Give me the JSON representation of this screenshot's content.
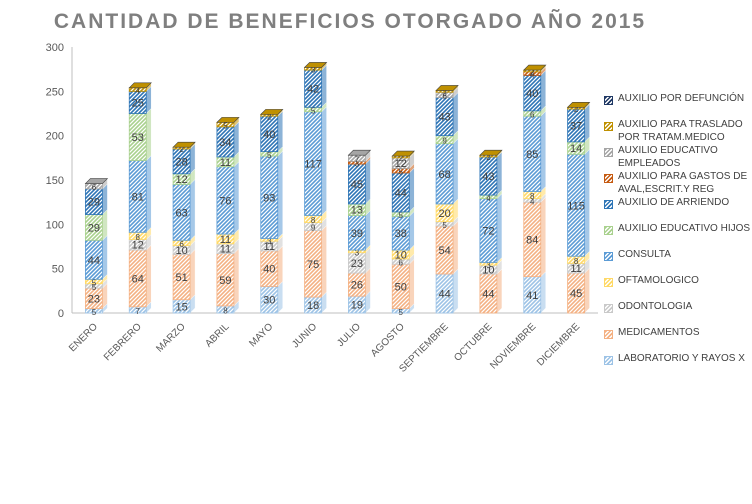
{
  "chart_data": {
    "type": "bar",
    "stacked": true,
    "title": "CANTIDAD DE BENEFICIOS OTORGADO AÑO 2015",
    "xlabel": "",
    "ylabel": "",
    "ylim": [
      0,
      300
    ],
    "yticks": [
      0,
      50,
      100,
      150,
      200,
      250,
      300
    ],
    "grid": false,
    "legend_position": "right",
    "categories": [
      "ENERO",
      "FEBRERO",
      "MARZO",
      "ABRIL",
      "MAYO",
      "JUNIO",
      "JULIO",
      "AGOSTO",
      "SEPTIEMBRE",
      "OCTUBRE",
      "NOVIEMBRE",
      "DICIEMBRE"
    ],
    "series": [
      {
        "name": "LABORATORIO Y RAYOS X",
        "color": "#9dc3e6",
        "values": [
          5,
          7,
          15,
          8,
          30,
          18,
          19,
          5,
          44,
          0,
          41,
          0
        ]
      },
      {
        "name": "MEDICAMENTOS",
        "color": "#f4b183",
        "values": [
          23,
          64,
          51,
          59,
          40,
          75,
          26,
          50,
          54,
          44,
          84,
          45
        ]
      },
      {
        "name": "ODONTOLOGIA",
        "color": "#c9c9c9",
        "values": [
          5,
          12,
          10,
          11,
          11,
          9,
          23,
          6,
          5,
          10,
          4,
          11
        ]
      },
      {
        "name": "OFTAMOLOGICO",
        "color": "#ffd966",
        "values": [
          5,
          8,
          6,
          11,
          3,
          8,
          3,
          10,
          20,
          3,
          8,
          8
        ]
      },
      {
        "name": "CONSULTA",
        "color": "#5b9bd5",
        "values": [
          44,
          81,
          63,
          76,
          93,
          117,
          39,
          38,
          68,
          72,
          85,
          115
        ]
      },
      {
        "name": "AUXILIO EDUCATIVO HIJOS",
        "color": "#a9d18e",
        "values": [
          29,
          53,
          12,
          11,
          5,
          5,
          13,
          5,
          9,
          4,
          6,
          14
        ]
      },
      {
        "name": "AUXILIO DE ARRIENDO",
        "color": "#2e75b6",
        "values": [
          29,
          25,
          28,
          34,
          40,
          42,
          45,
          44,
          43,
          43,
          40,
          37
        ]
      },
      {
        "name": "AUXILIO PARA GASTOS DE AVAL,ESCRIT.Y REG",
        "color": "#c55a11",
        "values": [
          0,
          0,
          0,
          0,
          0,
          0,
          3,
          5,
          0,
          0,
          4,
          0
        ]
      },
      {
        "name": "AUXILIO EDUCATIVO EMPLEADOS",
        "color": "#a5a5a5",
        "values": [
          6,
          0,
          0,
          0,
          0,
          0,
          7,
          12,
          6,
          0,
          0,
          0
        ]
      },
      {
        "name": "AUXILIO PARA TRASLADO POR TRATAM.MEDICO",
        "color": "#bf9000",
        "values": [
          0,
          4,
          2,
          5,
          2,
          3,
          0,
          2,
          2,
          2,
          2,
          2
        ]
      },
      {
        "name": "AUXILIO POR DEFUNCIÓN",
        "color": "#1f3864",
        "values": [
          0,
          0,
          0,
          0,
          0,
          0,
          0,
          0,
          0,
          0,
          0,
          0
        ]
      }
    ]
  }
}
